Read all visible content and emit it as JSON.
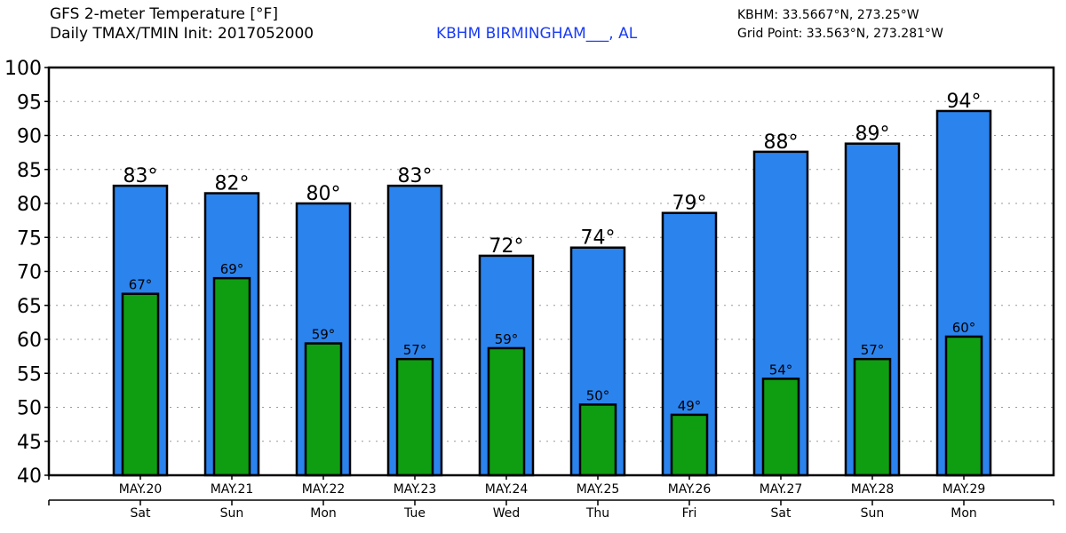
{
  "header": {
    "title": "GFS 2-meter Temperature [°F]",
    "subtitle": "Daily TMAX/TMIN Init: 2017052000",
    "station": "KBHM BIRMINGHAM___, AL",
    "station_coords": "KBHM: 33.5667°N, 273.25°W",
    "grid_point": "Grid Point: 33.563°N, 273.281°W"
  },
  "colors": {
    "tmax": "#2b83ee",
    "tmin": "#0f9e12",
    "station": "#1a3cf5"
  },
  "chart_data": {
    "type": "bar",
    "title": "GFS 2-meter Temperature [°F]",
    "ylim": [
      40,
      100
    ],
    "yticks": [
      40,
      45,
      50,
      55,
      60,
      65,
      70,
      75,
      80,
      85,
      90,
      95,
      100
    ],
    "grid": true,
    "categories": [
      "MAY.20",
      "MAY.21",
      "MAY.22",
      "MAY.23",
      "MAY.24",
      "MAY.25",
      "MAY.26",
      "MAY.27",
      "MAY.28",
      "MAY.29"
    ],
    "weekdays": [
      "Sat",
      "Sun",
      "Mon",
      "Tue",
      "Wed",
      "Thu",
      "Fri",
      "Sat",
      "Sun",
      "Mon"
    ],
    "series": [
      {
        "name": "TMAX",
        "values": [
          82.6,
          81.5,
          80.0,
          82.6,
          72.3,
          73.5,
          78.6,
          87.6,
          88.8,
          93.6
        ],
        "labels": [
          "83°",
          "82°",
          "80°",
          "83°",
          "72°",
          "74°",
          "79°",
          "88°",
          "89°",
          "94°"
        ]
      },
      {
        "name": "TMIN",
        "values": [
          66.7,
          69.0,
          59.4,
          57.1,
          58.7,
          50.4,
          48.9,
          54.2,
          57.1,
          60.4
        ],
        "labels": [
          "67°",
          "69°",
          "59°",
          "57°",
          "59°",
          "50°",
          "49°",
          "54°",
          "57°",
          "60°"
        ]
      }
    ]
  }
}
